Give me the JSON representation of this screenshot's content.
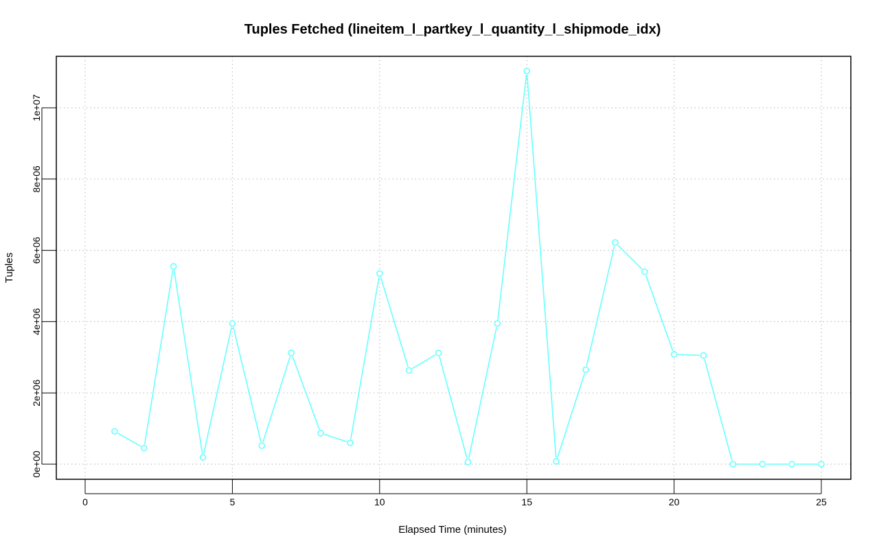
{
  "chart_data": {
    "type": "line",
    "title": "Tuples Fetched (lineitem_l_partkey_l_quantity_l_shipmode_idx)",
    "xlabel": "Elapsed Time (minutes)",
    "ylabel": "Tuples",
    "xlim": [
      0,
      25
    ],
    "ylim": [
      0,
      11000000
    ],
    "x_ticks": [
      0,
      5,
      10,
      15,
      20,
      25
    ],
    "x_tick_labels": [
      "0",
      "5",
      "10",
      "15",
      "20",
      "25"
    ],
    "y_ticks": [
      0,
      2000000,
      4000000,
      6000000,
      8000000,
      10000000
    ],
    "y_tick_labels": [
      "0e+00",
      "2e+06",
      "4e+06",
      "6e+06",
      "8e+06",
      "1e+07"
    ],
    "grid": true,
    "color": "#66FFFF",
    "series": [
      {
        "x": [
          1,
          2,
          3,
          4,
          5,
          6,
          7,
          8,
          9,
          10,
          11,
          12,
          13,
          14,
          15,
          16,
          17,
          18,
          19,
          20,
          21,
          22,
          23,
          24,
          25
        ],
        "values": [
          920000,
          450000,
          5550000,
          190000,
          3950000,
          520000,
          3120000,
          870000,
          600000,
          5350000,
          2630000,
          3120000,
          60000,
          3950000,
          11030000,
          80000,
          2650000,
          6220000,
          5400000,
          3080000,
          3050000,
          0,
          0,
          0,
          0
        ]
      }
    ]
  }
}
